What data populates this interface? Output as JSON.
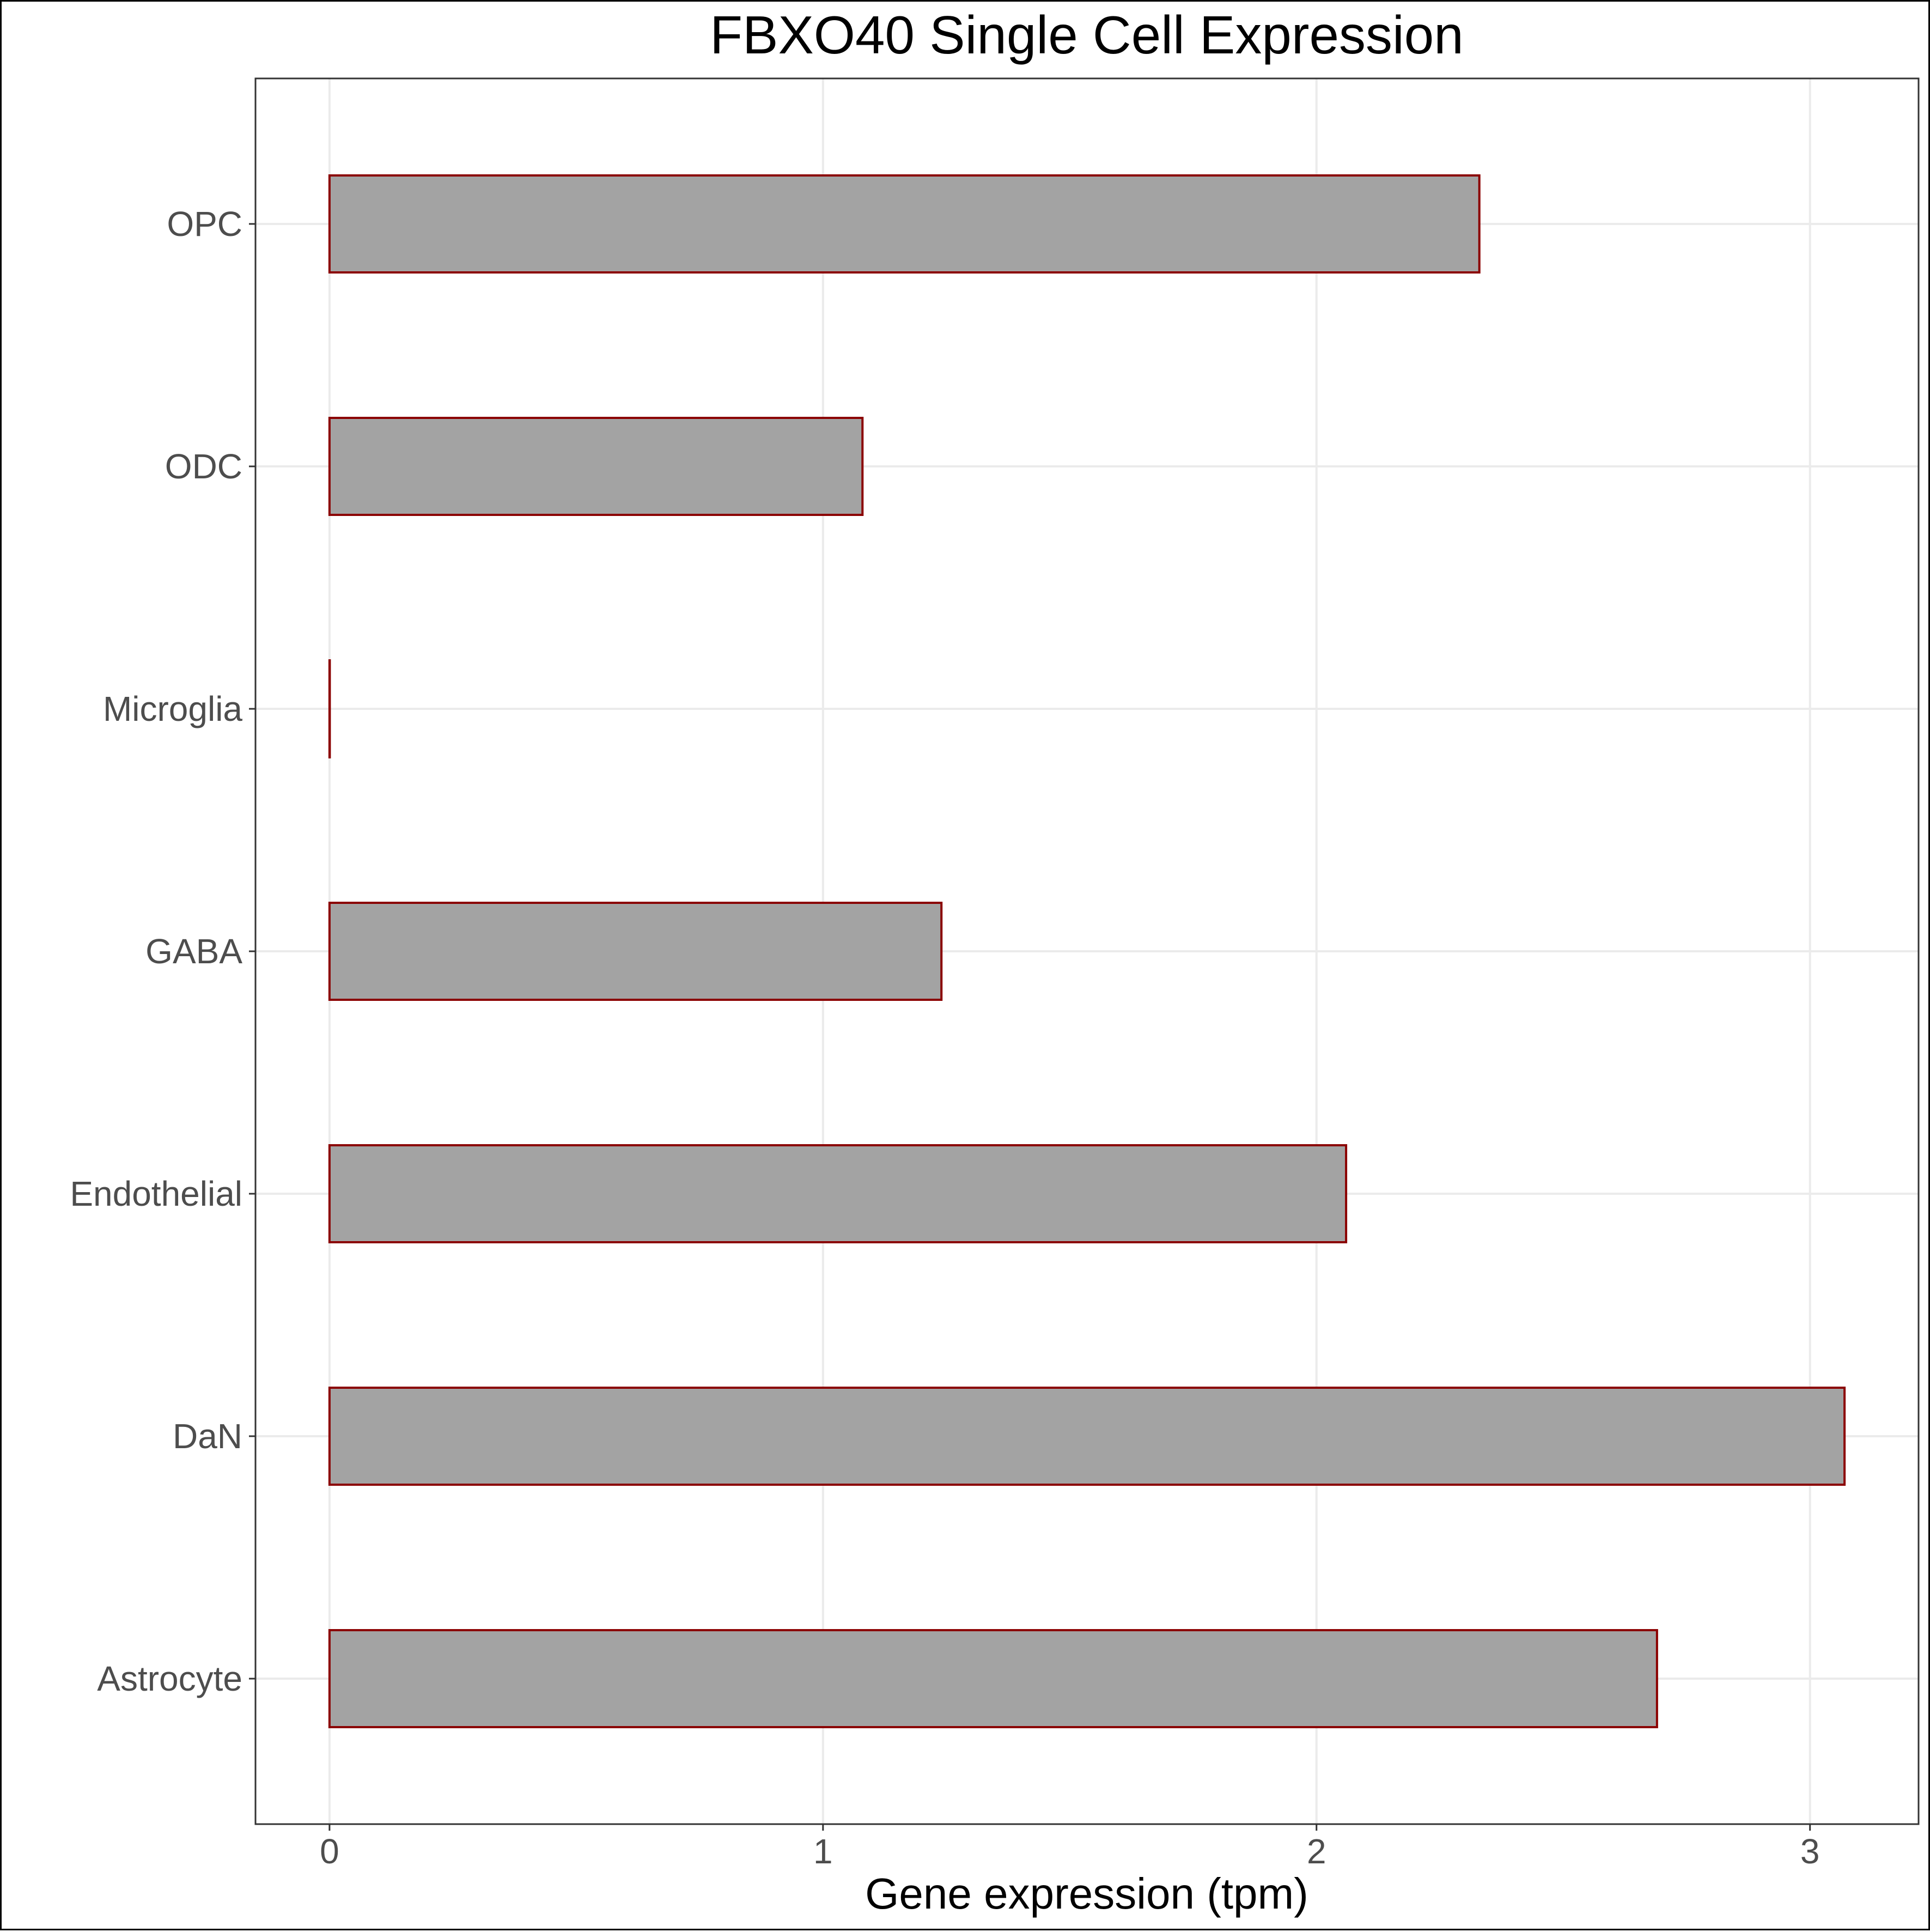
{
  "chart_data": {
    "type": "bar",
    "orientation": "horizontal",
    "title": "FBXO40 Single Cell Expression",
    "xlabel": "Gene expression (tpm)",
    "ylabel": "",
    "categories": [
      "Astrocyte",
      "DaN",
      "Endothelial",
      "GABA",
      "Microglia",
      "ODC",
      "OPC"
    ],
    "values": [
      2.69,
      3.07,
      2.06,
      1.24,
      0.0,
      1.08,
      2.33
    ],
    "xlim": [
      -0.15,
      3.22
    ],
    "xticks": [
      "0",
      "1",
      "2",
      "3"
    ],
    "grid": true,
    "legend": "none",
    "bar_fill": "#a3a3a3",
    "bar_outline": "#8b0000"
  }
}
